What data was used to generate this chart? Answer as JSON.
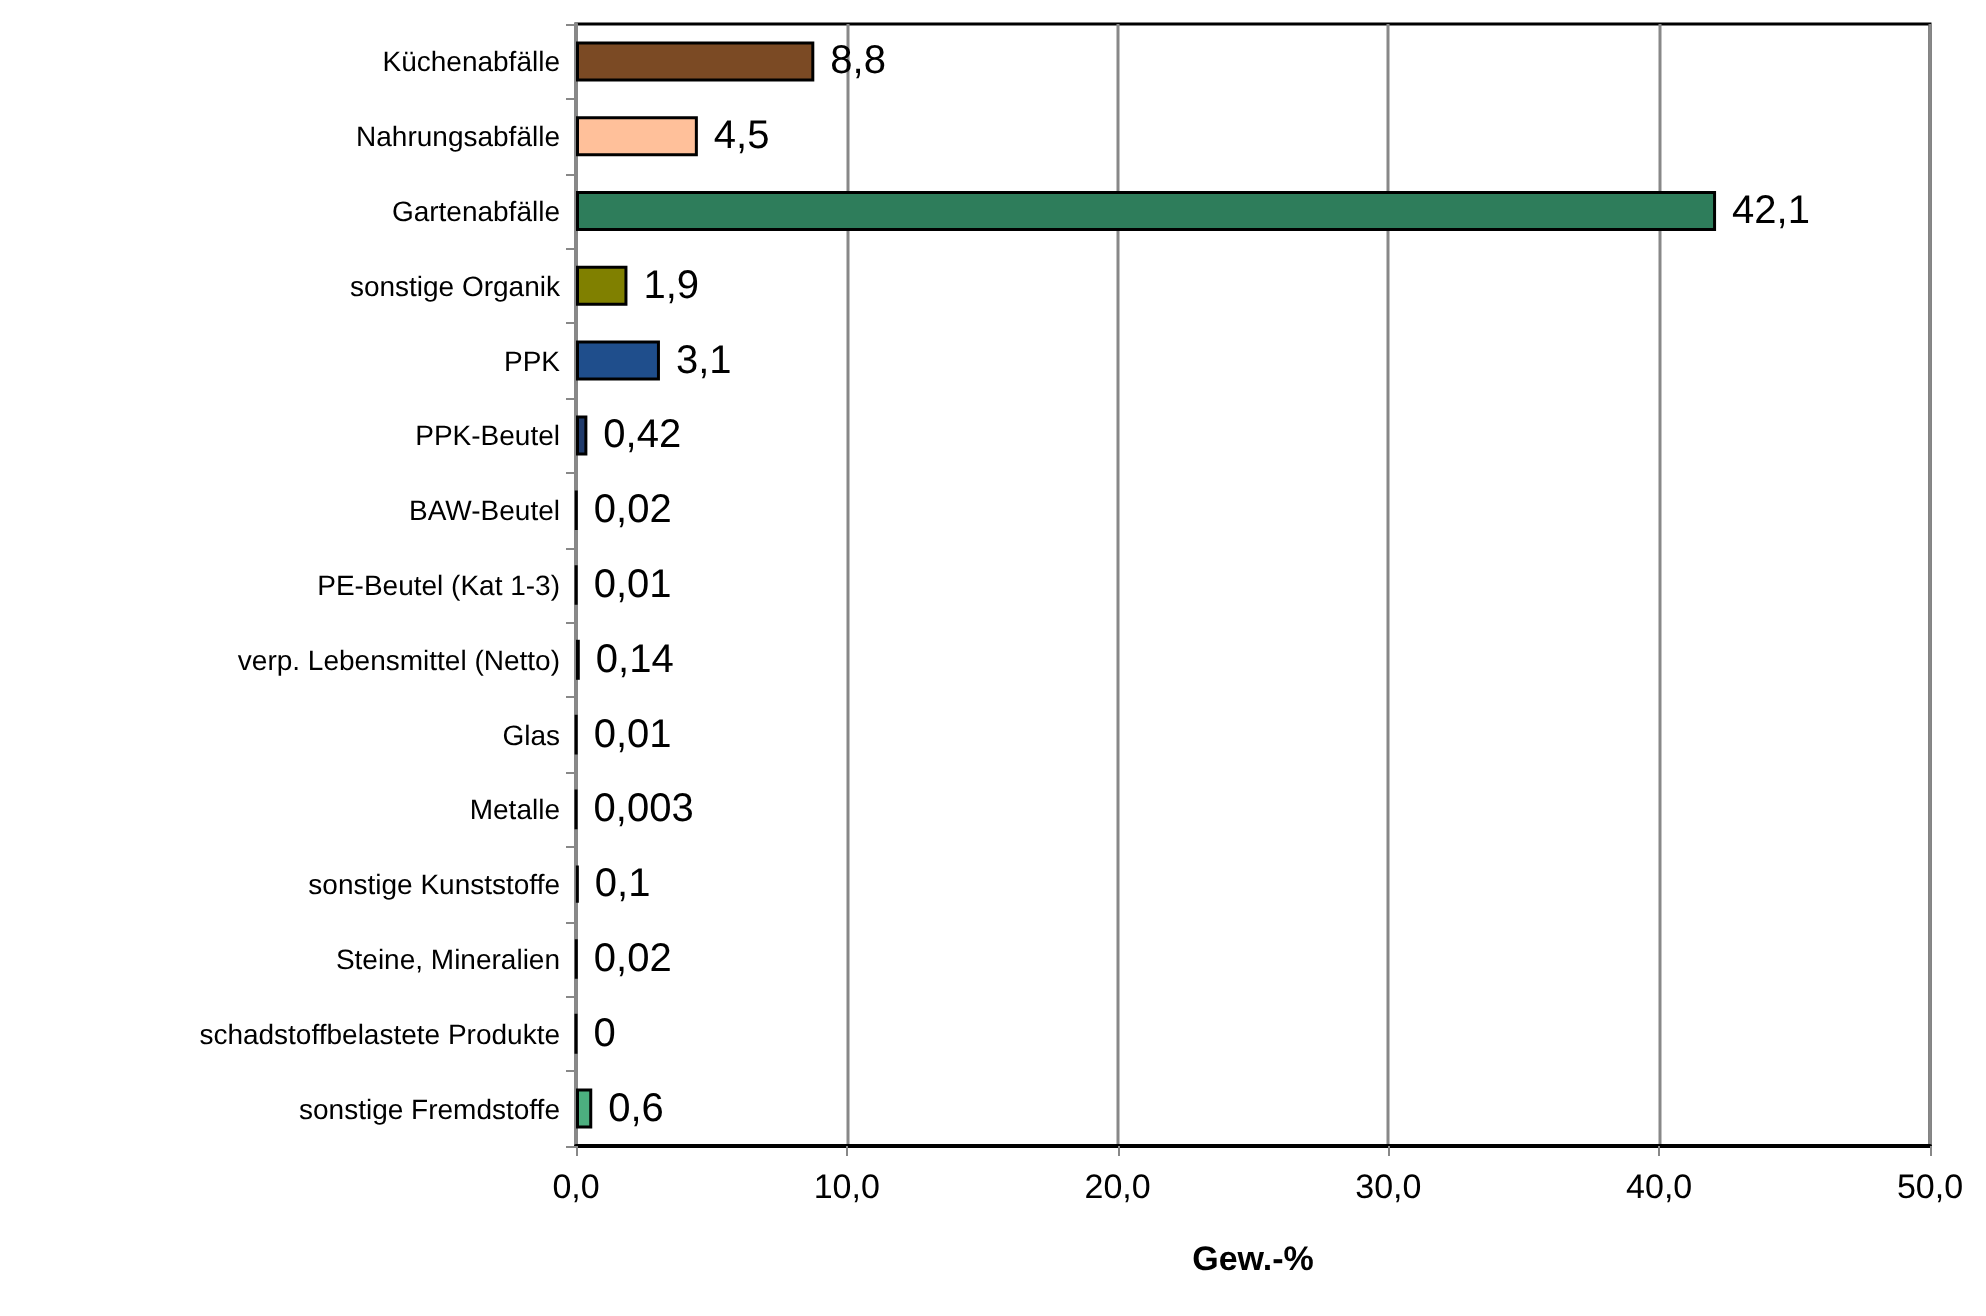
{
  "chart_data": {
    "type": "bar",
    "orientation": "horizontal",
    "xlabel": "Gew.-%",
    "categories": [
      "Küchenabfälle",
      "Nahrungsabfälle",
      "Gartenabfälle",
      "sonstige Organik",
      "PPK",
      "PPK-Beutel",
      "BAW-Beutel",
      "PE-Beutel (Kat 1-3)",
      "verp. Lebensmittel (Netto)",
      "Glas",
      "Metalle",
      "sonstige Kunststoffe",
      "Steine, Mineralien",
      "schadstoffbelastete Produkte",
      "sonstige Fremdstoffe"
    ],
    "values": [
      8.8,
      4.5,
      42.1,
      1.9,
      3.1,
      0.42,
      0.02,
      0.01,
      0.14,
      0.01,
      0.003,
      0.1,
      0.02,
      0,
      0.6
    ],
    "value_labels": [
      "8,8",
      "4,5",
      "42,1",
      "1,9",
      "3,1",
      "0,42",
      "0,02",
      "0,01",
      "0,14",
      "0,01",
      "0,003",
      "0,1",
      "0,02",
      "0",
      "0,6"
    ],
    "colors": [
      "#7b4a24",
      "#ffc09a",
      "#2e7d5b",
      "#808000",
      "#1f4e8c",
      "#1f3a6b",
      "#000000",
      "#000000",
      "#000000",
      "#000000",
      "#000000",
      "#000000",
      "#000000",
      "#000000",
      "#4caf7f"
    ],
    "xlim": [
      0,
      50
    ],
    "xticks": [
      {
        "value": 0,
        "label": "0,0"
      },
      {
        "value": 10,
        "label": "10,0"
      },
      {
        "value": 20,
        "label": "20,0"
      },
      {
        "value": 30,
        "label": "30,0"
      },
      {
        "value": 40,
        "label": "40,0"
      },
      {
        "value": 50,
        "label": "50,0"
      }
    ],
    "grid": "x"
  }
}
